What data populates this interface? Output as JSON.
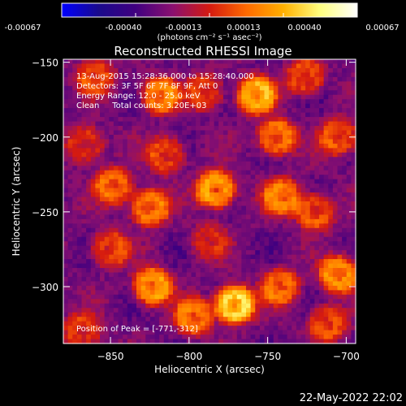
{
  "colorbar": {
    "tick_labels": [
      "-0.00067",
      "-0.00040",
      "-0.00013",
      "0.00013",
      "0.00040",
      "0.00067"
    ],
    "unit_label": "(photons cm⁻² s⁻¹ asec⁻²)"
  },
  "chart_data": {
    "type": "heatmap",
    "title": "Reconstructed RHESSI Image",
    "xlabel": "Heliocentric X (arcsec)",
    "ylabel": "Heliocentric Y (arcsec)",
    "xlim": [
      -880,
      -694
    ],
    "ylim": [
      -338,
      -148
    ],
    "x_ticks": [
      -850,
      -800,
      -750,
      -700
    ],
    "y_ticks": [
      -150,
      -200,
      -250,
      -300
    ],
    "zlim": [
      -0.00067,
      0.00067
    ],
    "colormap_stops": [
      "#0000ff",
      "#1a0a8c",
      "#400080",
      "#8a1070",
      "#d51a10",
      "#ff6a00",
      "#ffb000",
      "#ffff80",
      "#ffffff"
    ],
    "annotations": [
      "13-Aug-2015 15:28:36.000 to 15:28:40.000",
      "Detectors: 3F 5F 6F 7F 8F 9F, Att 0",
      "Energy Range: 12.0 - 25.0 keV",
      "Clean     Total counts: 3.20E+03"
    ],
    "peak_label": "Position of Peak = [-771,-312]",
    "peak": [
      -771,
      -312
    ],
    "sources": [
      {
        "x": -771,
        "y": -312,
        "amp": 0.00067
      },
      {
        "x": -783,
        "y": -235,
        "amp": 0.00052
      },
      {
        "x": -757,
        "y": -172,
        "amp": 0.0005
      },
      {
        "x": -823,
        "y": -300,
        "amp": 0.00048
      },
      {
        "x": -705,
        "y": -292,
        "amp": 0.00045
      },
      {
        "x": -818,
        "y": -172,
        "amp": 0.0004
      },
      {
        "x": -825,
        "y": -247,
        "amp": 0.00042
      },
      {
        "x": -744,
        "y": -200,
        "amp": 0.0004
      },
      {
        "x": -741,
        "y": -240,
        "amp": 0.00038
      },
      {
        "x": -742,
        "y": -300,
        "amp": 0.00036
      },
      {
        "x": -797,
        "y": -320,
        "amp": 0.00038
      },
      {
        "x": -848,
        "y": -233,
        "amp": 0.00036
      },
      {
        "x": -720,
        "y": -250,
        "amp": 0.00035
      },
      {
        "x": -850,
        "y": -275,
        "amp": 0.0003
      },
      {
        "x": -705,
        "y": -200,
        "amp": 0.00032
      },
      {
        "x": -815,
        "y": -212,
        "amp": 0.0003
      },
      {
        "x": -726,
        "y": -160,
        "amp": 0.0003
      },
      {
        "x": -860,
        "y": -160,
        "amp": 0.00028
      },
      {
        "x": -866,
        "y": -205,
        "amp": 0.00028
      },
      {
        "x": -868,
        "y": -330,
        "amp": 0.00026
      },
      {
        "x": -712,
        "y": -325,
        "amp": 0.0003
      },
      {
        "x": -790,
        "y": -170,
        "amp": 0.00026
      },
      {
        "x": -787,
        "y": -270,
        "amp": 0.0002
      }
    ]
  },
  "footer": {
    "date": "22-May-2022 22:02"
  }
}
